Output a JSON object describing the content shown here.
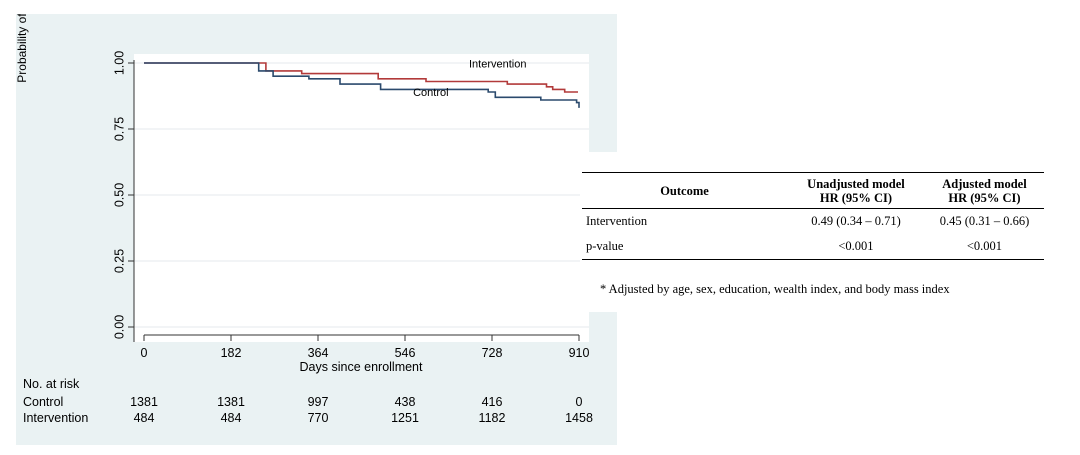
{
  "chart_data": {
    "type": "line",
    "subtype": "kaplan-meier step curve",
    "title": "",
    "xlabel": "Days since enrollment",
    "ylabel": "Probability of free hypertension",
    "xlim": [
      0,
      910
    ],
    "ylim": [
      0,
      1
    ],
    "xticks": [
      0,
      182,
      364,
      546,
      728,
      910
    ],
    "yticks": [
      0.0,
      0.25,
      0.5,
      0.75,
      1.0
    ],
    "ytick_labels": [
      "0.00",
      "0.25",
      "0.50",
      "0.75",
      "1.00"
    ],
    "grid": "horizontal lines at y ticks",
    "series": [
      {
        "name": "Intervention",
        "color": "#b23a3a",
        "x": [
          0,
          255,
          330,
          490,
          590,
          760,
          842,
          855,
          880,
          908
        ],
        "y": [
          1.0,
          0.97,
          0.96,
          0.94,
          0.93,
          0.92,
          0.91,
          0.9,
          0.89,
          0.89
        ]
      },
      {
        "name": "Control",
        "color": "#2b4a6d",
        "x": [
          0,
          240,
          270,
          345,
          410,
          495,
          720,
          735,
          830,
          848,
          870,
          895,
          905,
          910
        ],
        "y": [
          1.0,
          0.97,
          0.95,
          0.94,
          0.92,
          0.9,
          0.89,
          0.87,
          0.86,
          0.86,
          0.86,
          0.86,
          0.85,
          0.83
        ]
      }
    ],
    "risk_table": {
      "title": "No. at risk",
      "rows": [
        {
          "label": "Control",
          "values": [
            "1381",
            "1381",
            "997",
            "438",
            "416",
            "0"
          ]
        },
        {
          "label": "Intervention",
          "values": [
            "484",
            "484",
            "770",
            "1251",
            "1182",
            "1458"
          ]
        }
      ]
    }
  },
  "hr_table": {
    "headers": [
      "Outcome",
      "Unadjusted model HR (95% CI)",
      "Adjusted model HR (95% CI)"
    ],
    "header_lines": {
      "outcome": "Outcome",
      "unadjusted_1": "Unadjusted model",
      "unadjusted_2": "HR (95% CI)",
      "adjusted_1": "Adjusted model",
      "adjusted_2": "HR (95% CI)"
    },
    "rows": [
      {
        "label": "Intervention",
        "unadjusted": "0.49 (0.34 – 0.71)",
        "adjusted": "0.45 (0.31 – 0.66)"
      },
      {
        "label": "p-value",
        "unadjusted": "<0.001",
        "adjusted": "<0.001"
      }
    ],
    "footnote": "* Adjusted by age, sex, education, wealth index, and body mass index"
  }
}
